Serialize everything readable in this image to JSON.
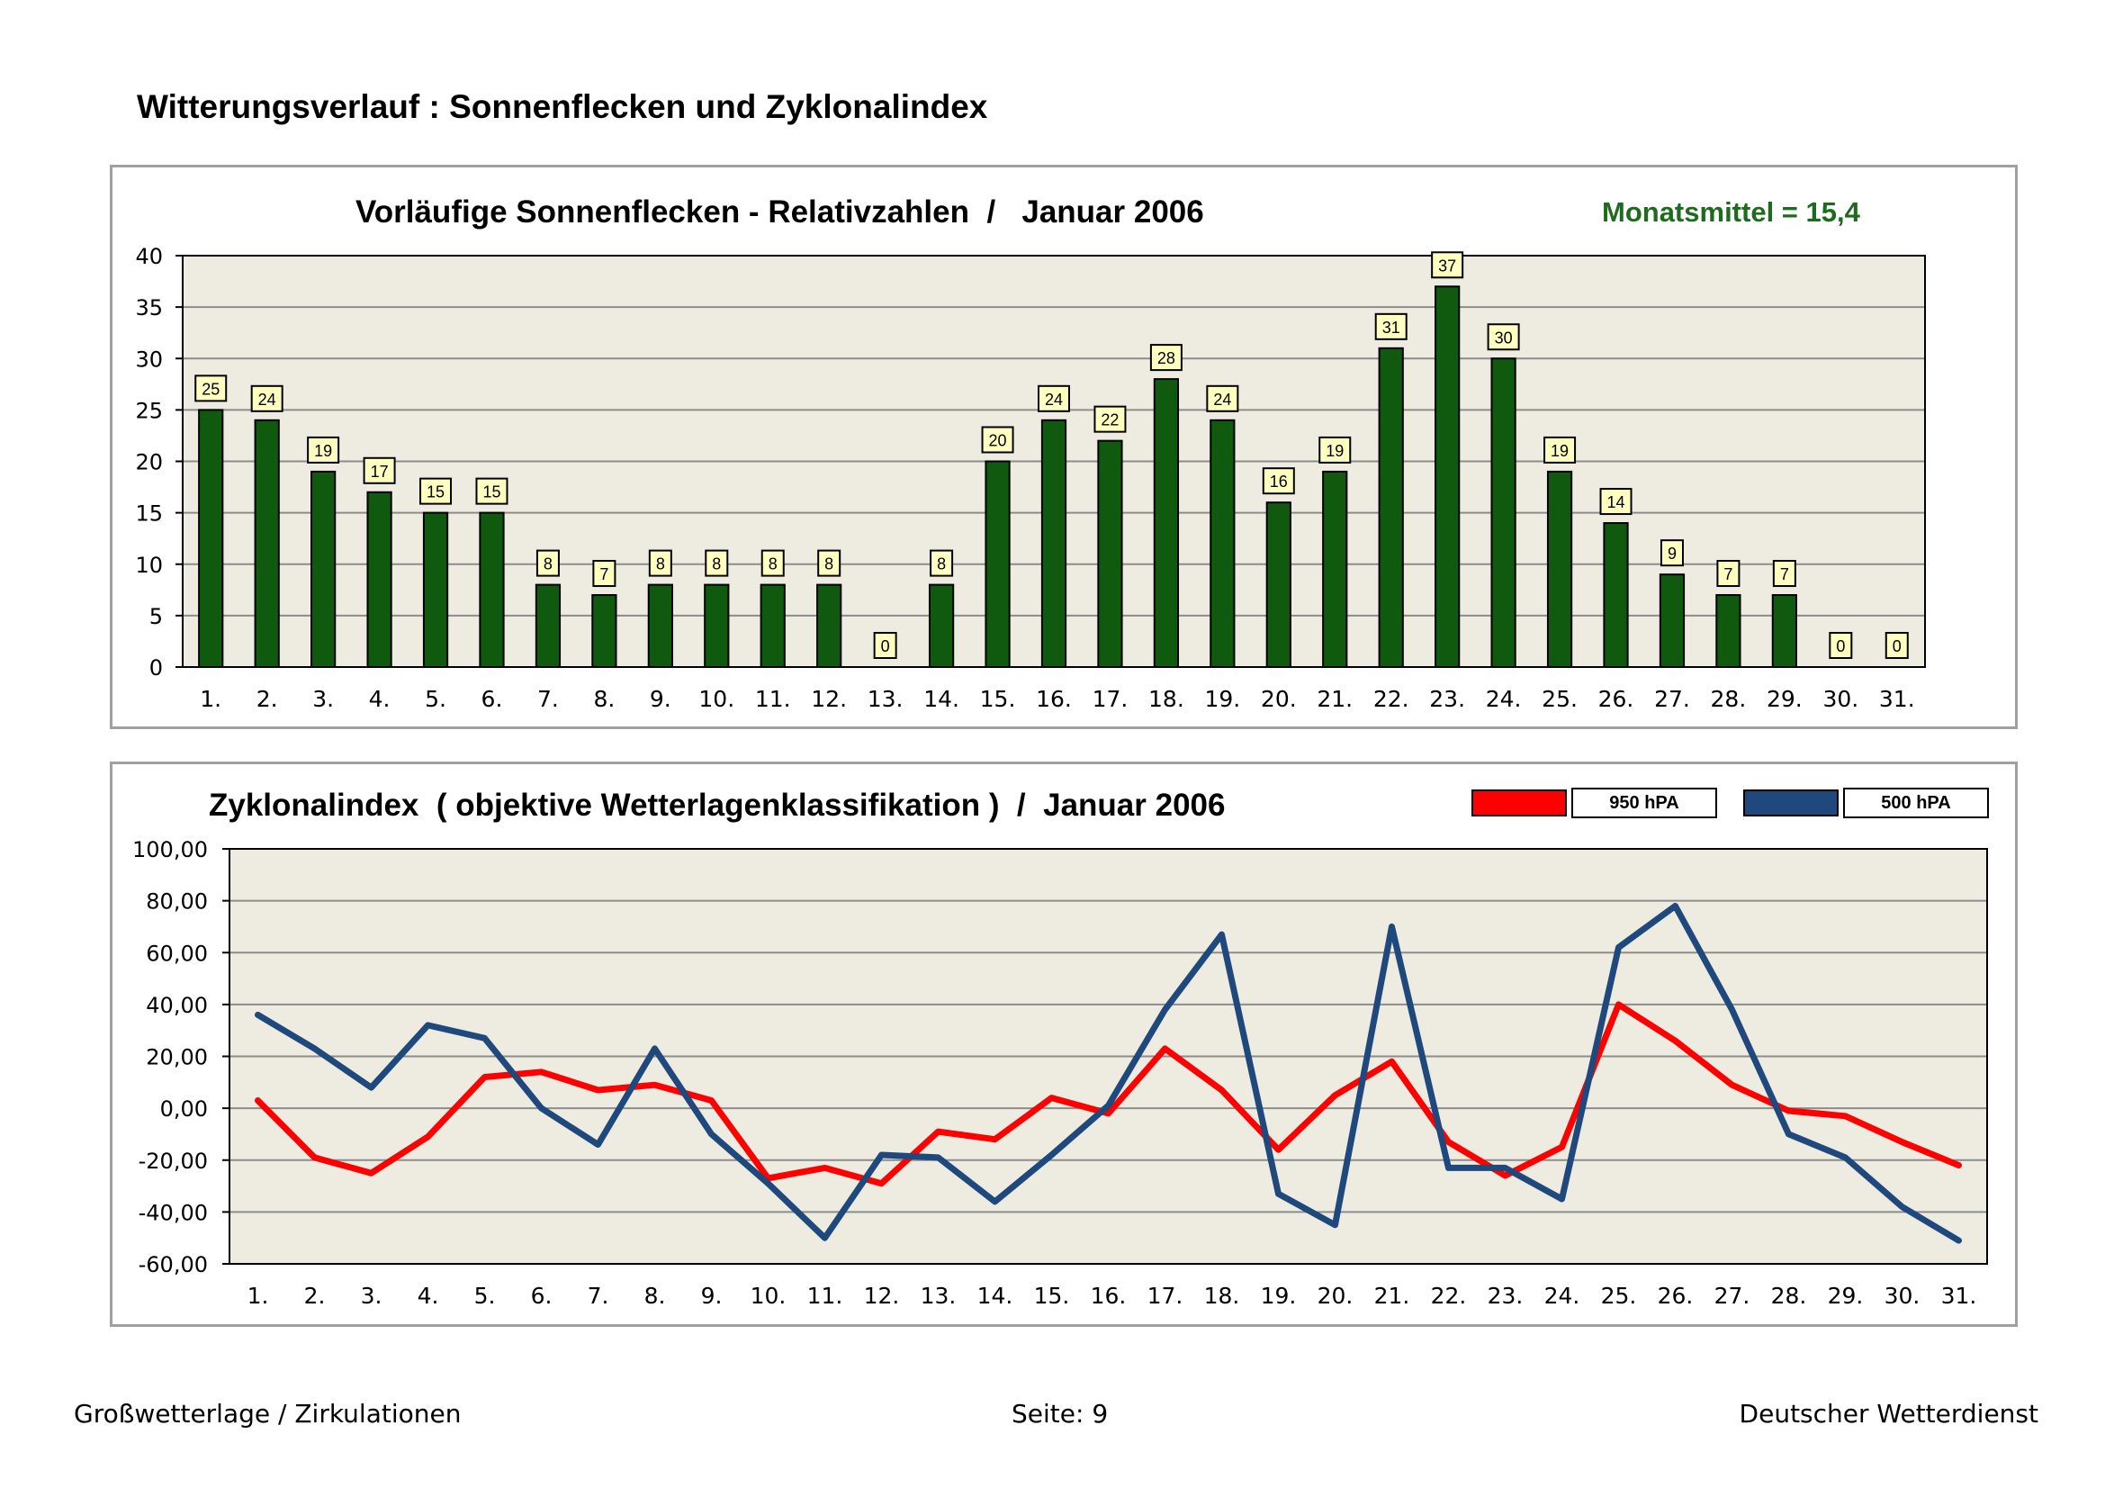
{
  "page_title": "Witterungsverlauf : Sonnenflecken und Zyklonalindex",
  "footer": {
    "left": "Großwetterlage / Zirkulationen",
    "center": "Seite: 9",
    "right": "Deutscher Wetterdienst"
  },
  "colors": {
    "bar": "#0f5a0f",
    "plot_bg": "#eeece1",
    "label_bg": "#ffffc0",
    "series_950": "#ff0000",
    "series_500": "#1f497d",
    "mean_text": "#1e6b1e"
  },
  "chart_data": [
    {
      "type": "bar",
      "title": "Vorläufige Sonnenflecken - Relativzahlen  /   Januar 2006",
      "annotation": "Monatsmittel = 15,4",
      "categories": [
        "1.",
        "2.",
        "3.",
        "4.",
        "5.",
        "6.",
        "7.",
        "8.",
        "9.",
        "10.",
        "11.",
        "12.",
        "13.",
        "14.",
        "15.",
        "16.",
        "17.",
        "18.",
        "19.",
        "20.",
        "21.",
        "22.",
        "23.",
        "24.",
        "25.",
        "26.",
        "27.",
        "28.",
        "29.",
        "30.",
        "31."
      ],
      "values": [
        25,
        24,
        19,
        17,
        15,
        15,
        8,
        7,
        8,
        8,
        8,
        8,
        0,
        8,
        20,
        24,
        22,
        28,
        24,
        16,
        19,
        31,
        37,
        30,
        19,
        14,
        9,
        7,
        7,
        0,
        0
      ],
      "data_labels": true,
      "ylim": [
        0,
        40
      ],
      "yticks": [
        0,
        5,
        10,
        15,
        20,
        25,
        30,
        35,
        40
      ],
      "ytick_labels": [
        "0",
        "5",
        "10",
        "15",
        "20",
        "25",
        "30",
        "35",
        "40"
      ],
      "grid": true,
      "xlabel": "",
      "ylabel": ""
    },
    {
      "type": "line",
      "title": "Zyklonalindex  ( objektive Wetterlagenklassifikation )  /  Januar 2006",
      "categories": [
        "1.",
        "2.",
        "3.",
        "4.",
        "5.",
        "6.",
        "7.",
        "8.",
        "9.",
        "10.",
        "11.",
        "12.",
        "13.",
        "14.",
        "15.",
        "16.",
        "17.",
        "18.",
        "19.",
        "20.",
        "21.",
        "22.",
        "23.",
        "24.",
        "25.",
        "26.",
        "27.",
        "28.",
        "29.",
        "30.",
        "31."
      ],
      "series": [
        {
          "name": "950 hPA",
          "color": "#ff0000",
          "values": [
            3,
            -19,
            -25,
            -11,
            12,
            14,
            7,
            9,
            3,
            -27,
            -23,
            -29,
            -9,
            -12,
            4,
            -2,
            23,
            7,
            -16,
            5,
            18,
            -13,
            -26,
            -15,
            40,
            26,
            9,
            -1,
            -3,
            -13,
            -22
          ]
        },
        {
          "name": "500 hPA",
          "color": "#1f497d",
          "values": [
            36,
            23,
            8,
            32,
            27,
            0,
            -14,
            23,
            -10,
            -29,
            -50,
            -18,
            -19,
            -36,
            -18,
            1,
            38,
            67,
            -33,
            -45,
            70,
            -23,
            -23,
            -35,
            62,
            78,
            38,
            -10,
            -19,
            -38,
            -51
          ]
        }
      ],
      "legend": "top-right",
      "ylim": [
        -60,
        100
      ],
      "yticks": [
        -60,
        -40,
        -20,
        0,
        20,
        40,
        60,
        80,
        100
      ],
      "ytick_labels": [
        "-60,00",
        "-40,00",
        "-20,00",
        "0,00",
        "20,00",
        "40,00",
        "60,00",
        "80,00",
        "100,00"
      ],
      "grid": true,
      "xlabel": "",
      "ylabel": ""
    }
  ]
}
